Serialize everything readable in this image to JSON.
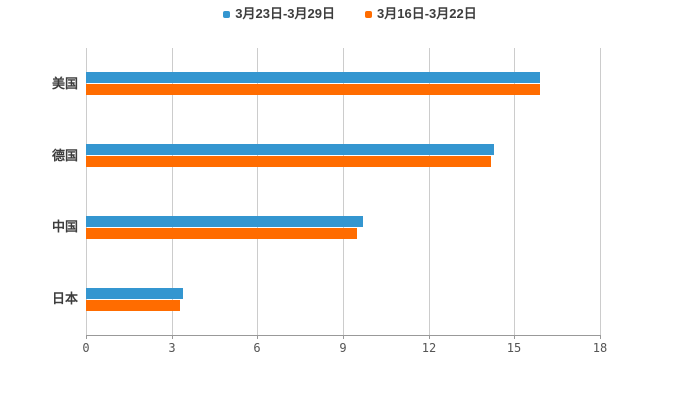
{
  "chart_data": {
    "type": "bar",
    "orientation": "horizontal",
    "title": "",
    "categories": [
      "美国",
      "德国",
      "中国",
      "日本"
    ],
    "series": [
      {
        "name": "3月23日-3月29日",
        "color": "#3496D0",
        "values": [
          15.9,
          14.3,
          9.7,
          3.4
        ]
      },
      {
        "name": "3月16日-3月22日",
        "color": "#FF6C00",
        "values": [
          15.9,
          14.2,
          9.5,
          3.3
        ]
      }
    ],
    "xlim": [
      0,
      18
    ],
    "xticks": [
      0,
      3,
      6,
      9,
      12,
      15,
      18
    ],
    "grid": true,
    "legend_position": "top-center",
    "colors": {
      "background": "#FFFFFF",
      "gridline": "#CCCCCC",
      "axis_line": "#999999",
      "tick_label": "#555555",
      "category_label": "#3D3D3D",
      "legend_text": "#3D3D3D"
    }
  }
}
